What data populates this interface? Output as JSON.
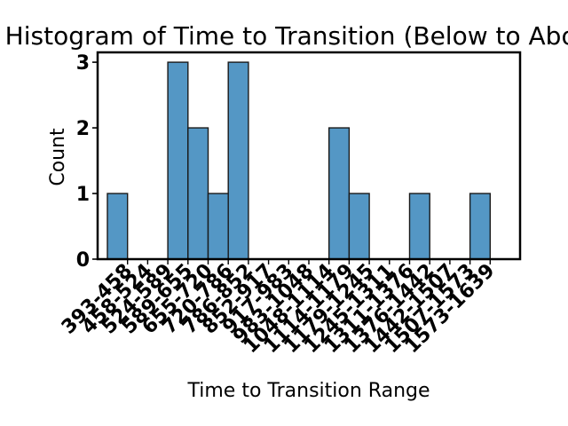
{
  "chart_data": {
    "type": "bar",
    "title": "Histogram of Time to Transition (Below to Above)",
    "xlabel": "Time to Transition Range",
    "ylabel": "Count",
    "categories": [
      "393-458",
      "458-524",
      "524-589",
      "589-655",
      "655-720",
      "720-786",
      "786-852",
      "852-917",
      "917-983",
      "983-1048",
      "1048-1114",
      "1114-1179",
      "1179-1245",
      "1245-1311",
      "1311-1376",
      "1376-1442",
      "1442-1507",
      "1507-1573",
      "1573-1639"
    ],
    "values": [
      1,
      0,
      0,
      3,
      2,
      1,
      3,
      0,
      0,
      0,
      0,
      2,
      1,
      0,
      0,
      1,
      0,
      0,
      1
    ],
    "ylim": [
      0,
      3.15
    ],
    "yticks": [
      0,
      1,
      2,
      3
    ],
    "grid": false,
    "colors": {
      "bar_fill": "#5497c5",
      "bar_edge": "#1a1a1a"
    }
  }
}
